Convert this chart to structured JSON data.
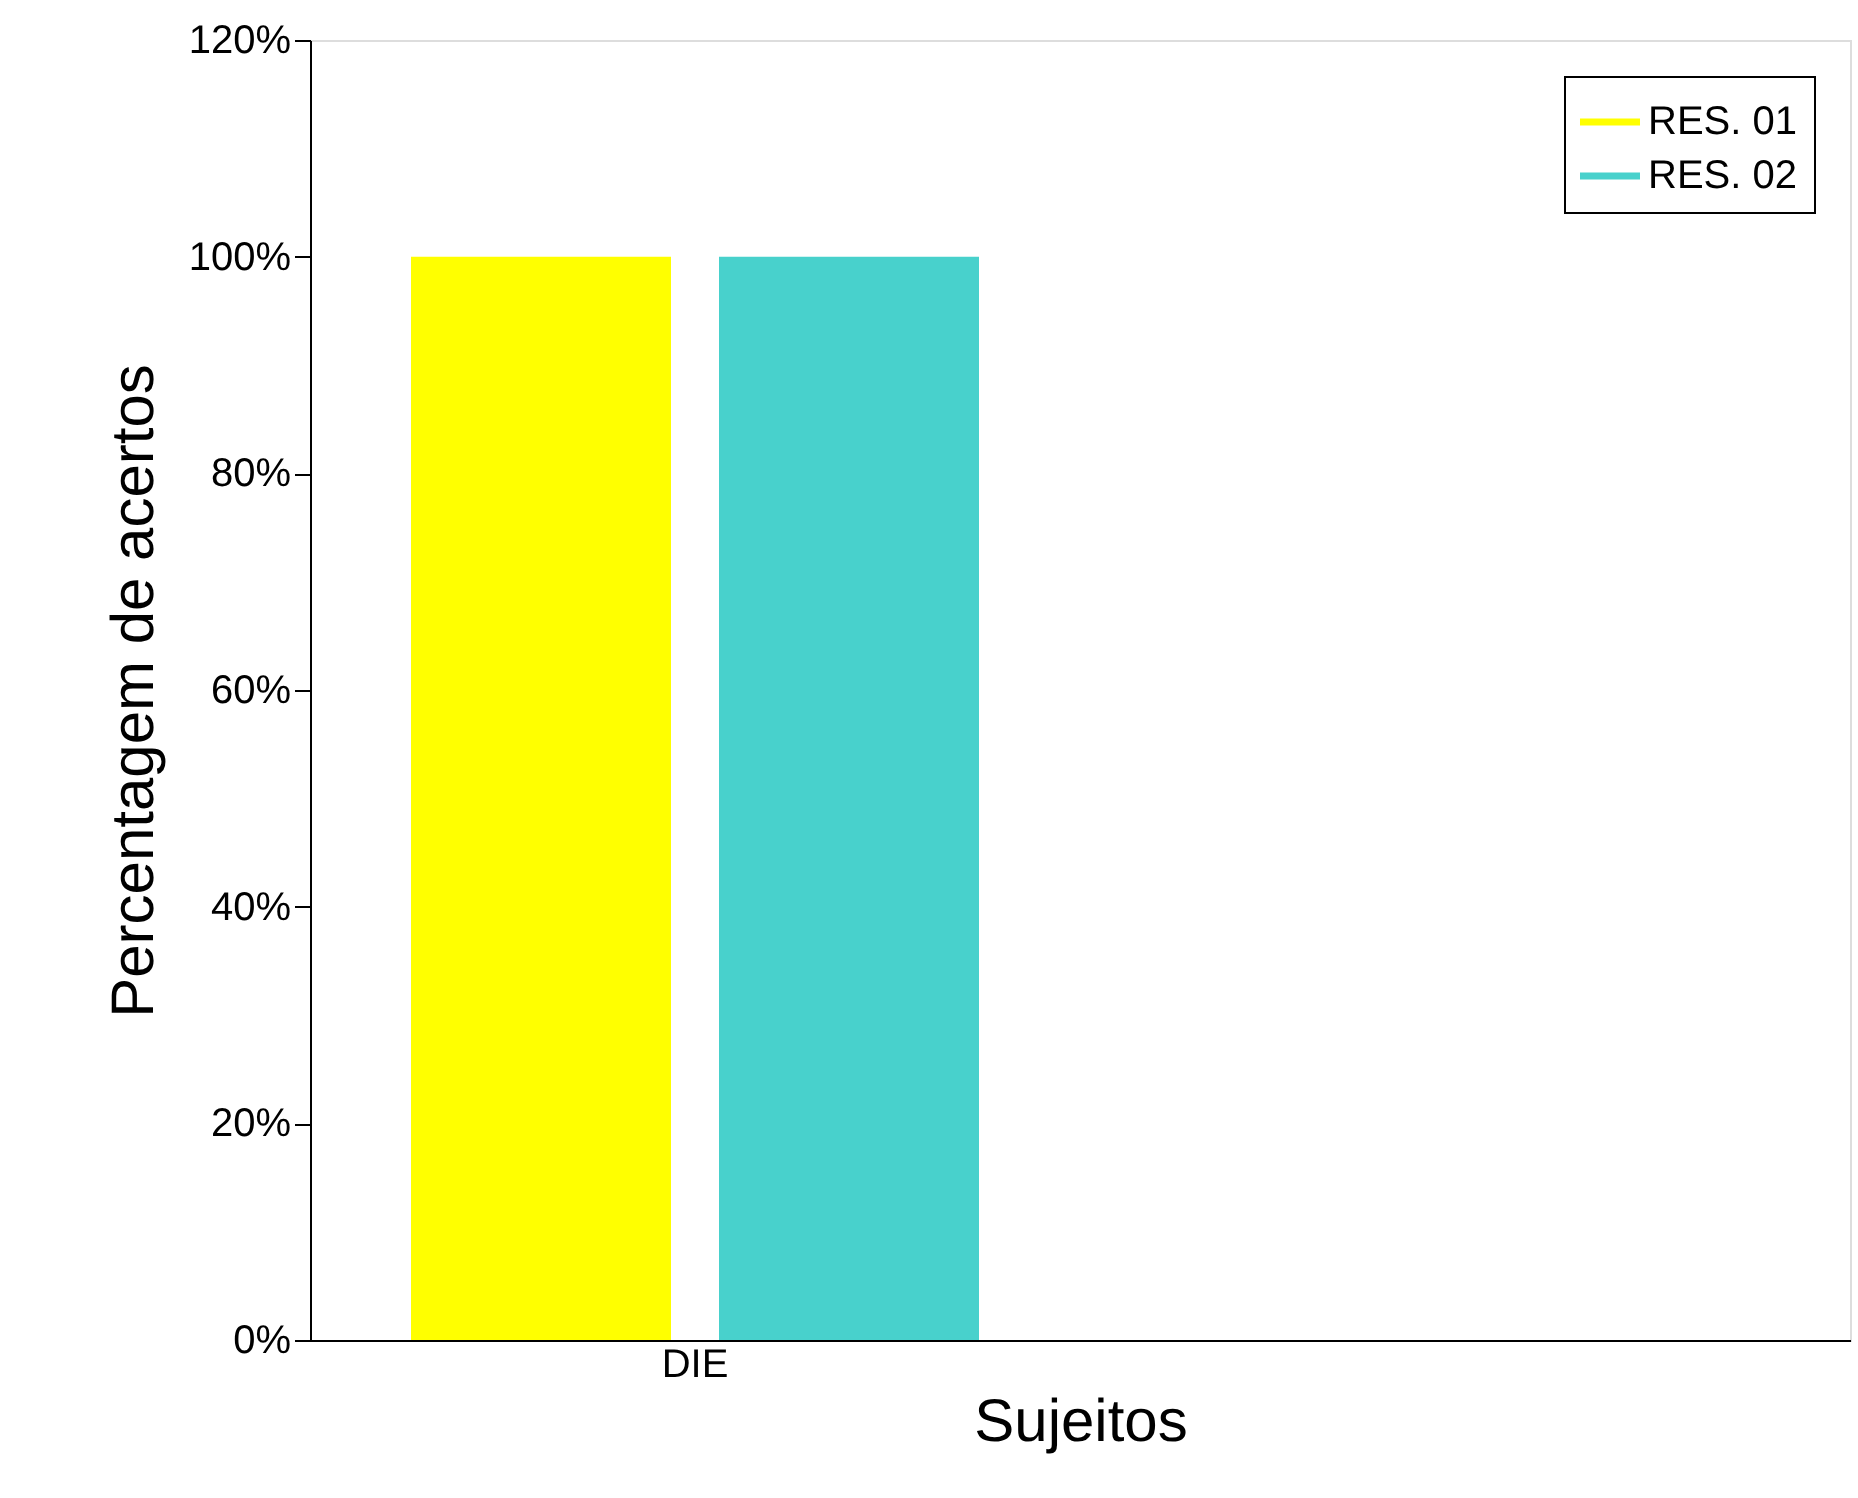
{
  "chart_data": {
    "type": "bar",
    "xlabel": "Sujeitos",
    "ylabel": "Percentagem de acertos",
    "categories": [
      "DIE",
      null
    ],
    "series": [
      {
        "name": "RES. 01",
        "color": "#ffff00",
        "values": [
          100,
          null
        ]
      },
      {
        "name": "RES. 02",
        "color": "#48d1cc",
        "values": [
          100,
          null
        ]
      }
    ],
    "ylim": [
      0,
      120
    ],
    "yticks": [
      {
        "value": 0,
        "label": "0%"
      },
      {
        "value": 20,
        "label": "20%"
      },
      {
        "value": 40,
        "label": "40%"
      },
      {
        "value": 60,
        "label": "60%"
      },
      {
        "value": 80,
        "label": "80%"
      },
      {
        "value": 100,
        "label": "100%"
      },
      {
        "value": 120,
        "label": "120%"
      }
    ],
    "legend": "top right",
    "grid": false
  }
}
